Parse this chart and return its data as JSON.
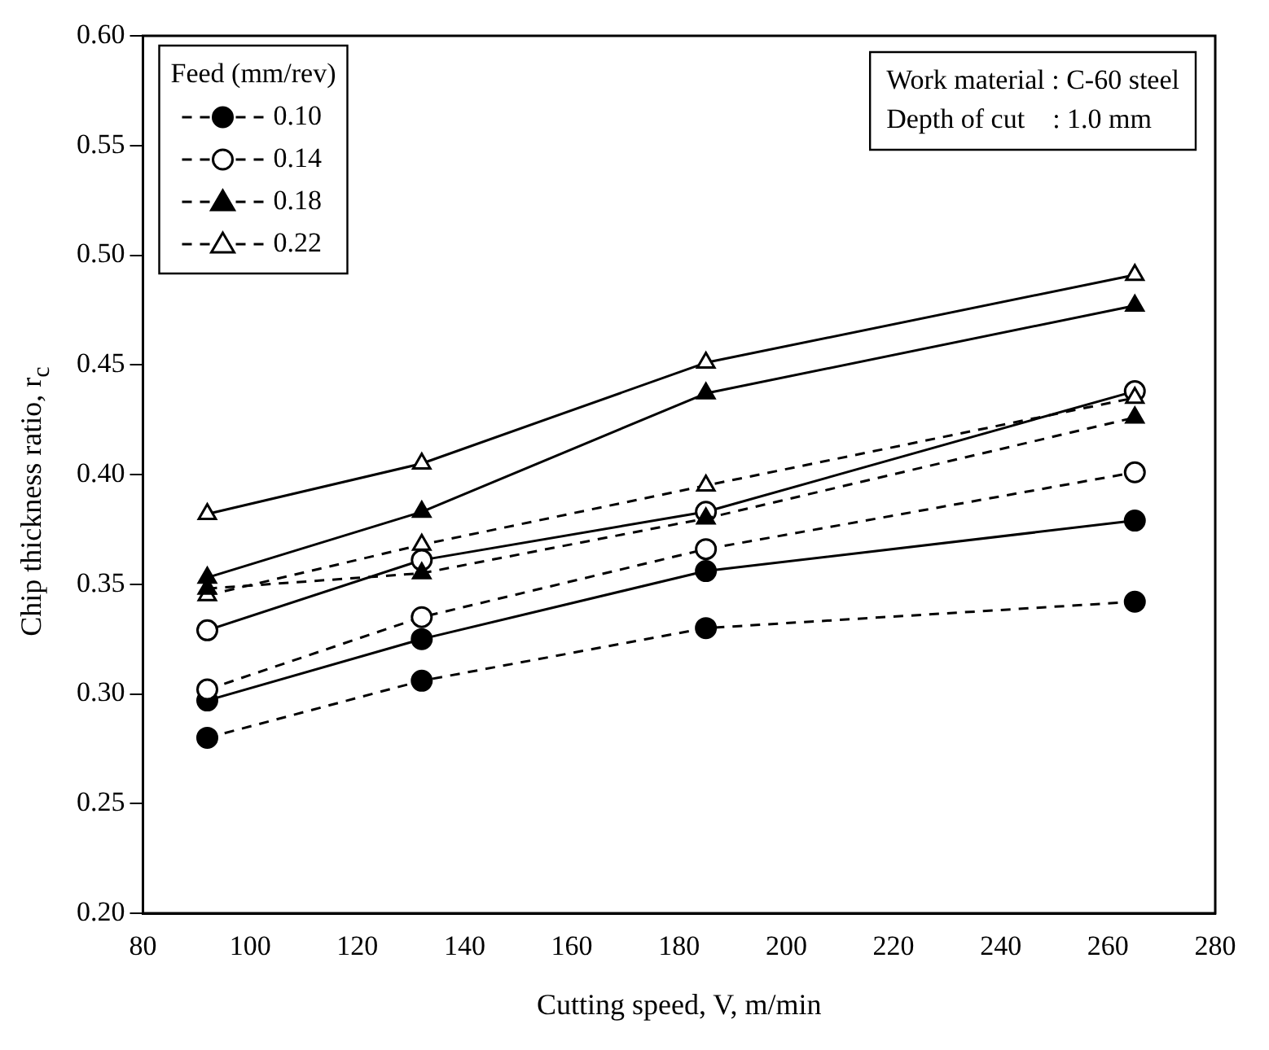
{
  "chart_data": {
    "type": "line",
    "xlabel": "Cutting speed, V, m/min",
    "ylabel": "Chip thickness ratio, r$_{c}$",
    "legend_title": "Feed (mm/rev)",
    "legend": "top left",
    "grid": false,
    "x": [
      92,
      132,
      185,
      265
    ],
    "xlim": [
      80,
      280
    ],
    "xticks": [
      80,
      100,
      120,
      140,
      160,
      180,
      200,
      220,
      240,
      260,
      280
    ],
    "ylim": [
      0.2,
      0.6
    ],
    "yticks": [
      {
        "value": 0.2,
        "label": "0.20"
      },
      0.25,
      {
        "value": 0.3,
        "label": "0.30"
      },
      0.35,
      {
        "value": 0.4,
        "label": "0.40"
      },
      0.45,
      {
        "value": 0.5,
        "label": "0.50"
      },
      0.55,
      {
        "value": 0.6,
        "label": "0.60"
      }
    ],
    "annotations": [
      "Work material : C-60 steel",
      "Depth of cut    : 1.0 mm"
    ],
    "series": [
      {
        "name": "0.10",
        "color": "#000000",
        "marker": "circle",
        "line_style": "dashed",
        "values": [
          0.28,
          0.306,
          0.33,
          0.342
        ]
      },
      {
        "name": "0.14",
        "color": "#000000",
        "marker": "circle",
        "line_style": "dashed",
        "values": [
          0.302,
          0.335,
          0.366,
          0.401
        ]
      },
      {
        "name": "0.18",
        "color": "#000000",
        "marker": "triangle",
        "line_style": "dashed",
        "values": [
          0.348,
          0.355,
          0.38,
          0.426
        ]
      },
      {
        "name": "0.22",
        "color": "#000000",
        "marker": "triangle",
        "line_style": "dashed",
        "values": [
          0.345,
          0.368,
          0.395,
          0.435
        ]
      },
      {
        "color": "#000000",
        "marker": "circle",
        "line_style": "solid",
        "values": [
          0.297,
          0.325,
          0.356,
          0.379
        ]
      },
      {
        "color": "#000000",
        "marker": "circle",
        "line_style": "solid",
        "values": [
          0.329,
          0.361,
          0.383,
          0.438
        ]
      },
      {
        "color": "#000000",
        "marker": "triangle",
        "line_style": "solid",
        "values": [
          0.353,
          0.383,
          0.437,
          0.477
        ]
      },
      {
        "color": "#000000",
        "marker": "triangle",
        "line_style": "solid",
        "values": [
          0.382,
          0.405,
          0.451,
          0.491
        ]
      }
    ]
  }
}
